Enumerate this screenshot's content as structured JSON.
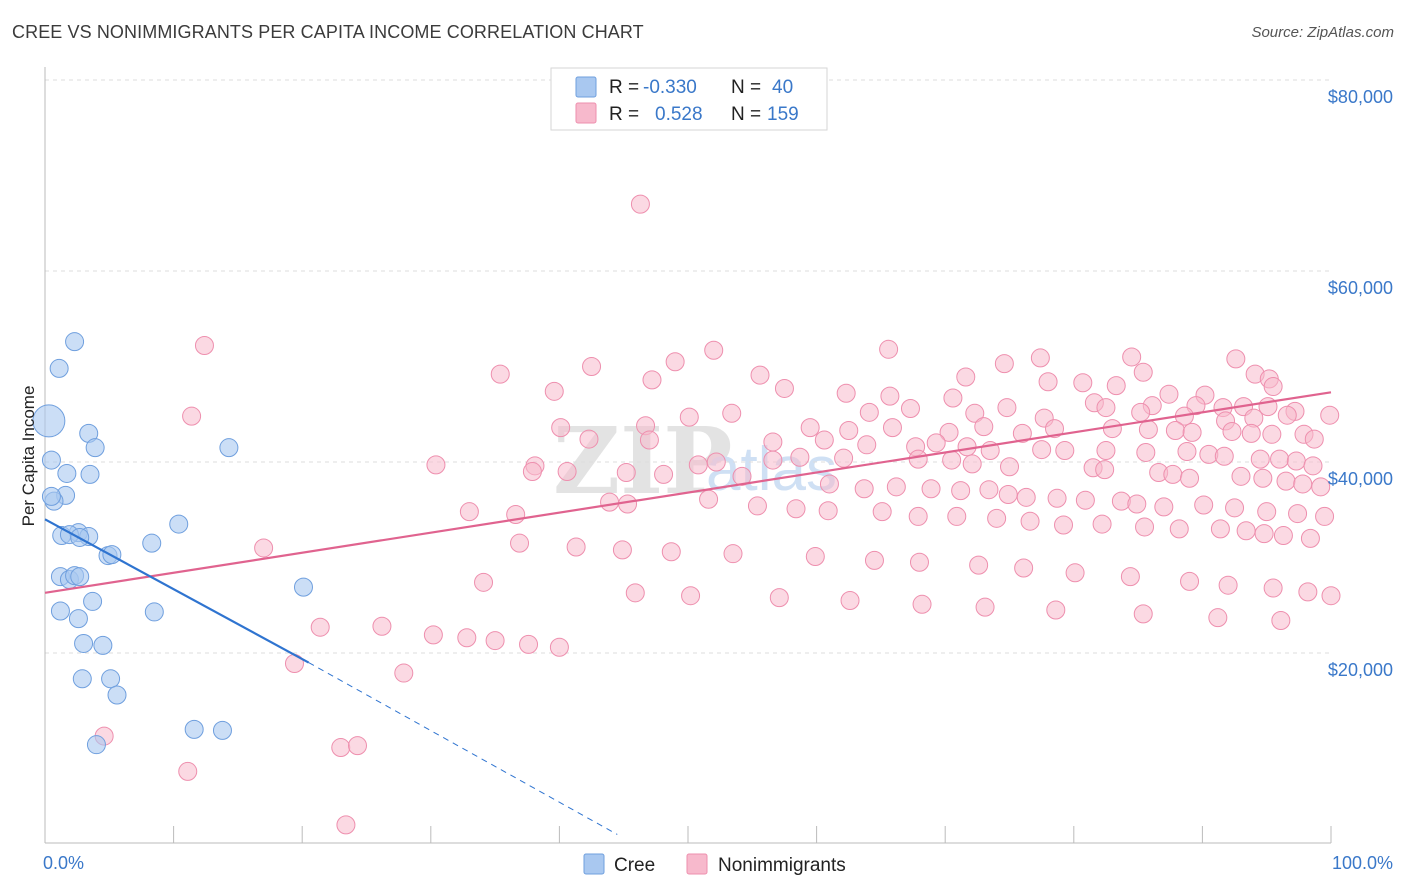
{
  "title": "CREE VS NONIMMIGRANTS PER CAPITA INCOME CORRELATION CHART",
  "source": "Source: ZipAtlas.com",
  "watermark": {
    "zip": "ZIP",
    "atlas": "atlas"
  },
  "colors": {
    "cree_fill": "#a9c8f0",
    "cree_stroke": "#6f9fde",
    "cree_line": "#2f74d0",
    "non_fill": "#f7b9cc",
    "non_stroke": "#ee8fae",
    "non_line": "#e0638f",
    "label_blue": "#3a78c9",
    "grid": "#dddddd"
  },
  "legend": {
    "rows": [
      {
        "r_label": "R =",
        "r_value": "-0.330",
        "n_label": "N =",
        "n_value": "40",
        "series": "cree"
      },
      {
        "r_label": "R =",
        "r_value": "0.528",
        "n_label": "N =",
        "n_value": "159",
        "series": "non"
      }
    ]
  },
  "bottom_legend": {
    "cree": "Cree",
    "non": "Nonimmigrants"
  },
  "chart_data": {
    "type": "scatter",
    "title": "CREE VS NONIMMIGRANTS PER CAPITA INCOME CORRELATION CHART",
    "xlabel": "",
    "ylabel": "Per Capita Income",
    "xlim": [
      0,
      100
    ],
    "ylim": [
      0,
      82000
    ],
    "x_tick_labels": [
      "0.0%",
      "100.0%"
    ],
    "y_ticks": [
      20000,
      40000,
      60000,
      80000
    ],
    "y_tick_labels": [
      "$20,000",
      "$40,000",
      "$60,000",
      "$80,000"
    ],
    "grid": true,
    "legend_position": "top-center",
    "series": [
      {
        "name": "Cree",
        "r": -0.33,
        "n": 40,
        "trend": {
          "x0": 0,
          "y0": 34000,
          "x1": 20.5,
          "y1": 19000,
          "dash_to_x": 44.5,
          "dash_to_y": 1000
        },
        "points": [
          [
            0.3,
            44300,
            16
          ],
          [
            2.3,
            52600,
            9
          ],
          [
            1.1,
            49800,
            9
          ],
          [
            3.4,
            43000,
            9
          ],
          [
            3.9,
            41500,
            9
          ],
          [
            0.5,
            40200,
            9
          ],
          [
            1.7,
            38800,
            9
          ],
          [
            3.5,
            38700,
            9
          ],
          [
            1.6,
            36500,
            9
          ],
          [
            0.7,
            35900,
            9
          ],
          [
            0.5,
            36400,
            9
          ],
          [
            2.6,
            32600,
            9
          ],
          [
            1.3,
            32300,
            9
          ],
          [
            1.9,
            32400,
            9
          ],
          [
            3.4,
            32200,
            9
          ],
          [
            2.7,
            32100,
            9
          ],
          [
            10.4,
            33500,
            9
          ],
          [
            8.3,
            31500,
            9
          ],
          [
            14.3,
            41500,
            9
          ],
          [
            4.9,
            30200,
            9
          ],
          [
            5.2,
            30300,
            9
          ],
          [
            1.2,
            28000,
            9
          ],
          [
            1.9,
            27700,
            9
          ],
          [
            2.3,
            28100,
            9
          ],
          [
            2.7,
            28000,
            9
          ],
          [
            3.7,
            25400,
            9
          ],
          [
            1.2,
            24400,
            9
          ],
          [
            2.6,
            23600,
            9
          ],
          [
            8.5,
            24300,
            9
          ],
          [
            20.1,
            26900,
            9
          ],
          [
            3.0,
            21000,
            9
          ],
          [
            4.5,
            20800,
            9
          ],
          [
            2.9,
            17300,
            9
          ],
          [
            5.1,
            17300,
            9
          ],
          [
            5.6,
            15600,
            9
          ],
          [
            11.6,
            12000,
            9
          ],
          [
            13.8,
            11900,
            9
          ],
          [
            4.0,
            10400,
            9
          ]
        ]
      },
      {
        "name": "Nonimmigrants",
        "r": 0.528,
        "n": 159,
        "trend": {
          "x0": 0,
          "y0": 26300,
          "x1": 100,
          "y1": 47300
        },
        "points": [
          [
            46.3,
            67000,
            9
          ],
          [
            12.4,
            52200,
            9
          ],
          [
            52.0,
            51700,
            9
          ],
          [
            65.6,
            51800,
            9
          ],
          [
            49.0,
            50500,
            9
          ],
          [
            42.5,
            50000,
            9
          ],
          [
            74.6,
            50300,
            9
          ],
          [
            77.4,
            50900,
            9
          ],
          [
            84.5,
            51000,
            9
          ],
          [
            85.4,
            49400,
            9
          ],
          [
            92.6,
            50800,
            9
          ],
          [
            94.1,
            49200,
            9
          ],
          [
            95.2,
            48700,
            9
          ],
          [
            35.4,
            49200,
            9
          ],
          [
            47.2,
            48600,
            9
          ],
          [
            55.6,
            49100,
            9
          ],
          [
            71.6,
            48900,
            9
          ],
          [
            78.0,
            48400,
            9
          ],
          [
            80.7,
            48300,
            9
          ],
          [
            83.3,
            48000,
            9
          ],
          [
            95.5,
            47900,
            9
          ],
          [
            57.5,
            47700,
            9
          ],
          [
            39.6,
            47400,
            9
          ],
          [
            62.3,
            47200,
            9
          ],
          [
            65.7,
            46900,
            9
          ],
          [
            70.6,
            46700,
            9
          ],
          [
            87.4,
            47100,
            9
          ],
          [
            90.2,
            47000,
            9
          ],
          [
            81.6,
            46200,
            9
          ],
          [
            86.1,
            45900,
            9
          ],
          [
            89.5,
            45900,
            9
          ],
          [
            91.6,
            45700,
            9
          ],
          [
            93.2,
            45800,
            9
          ],
          [
            95.1,
            45800,
            9
          ],
          [
            97.2,
            45300,
            9
          ],
          [
            11.4,
            44800,
            9
          ],
          [
            50.1,
            44700,
            9
          ],
          [
            53.4,
            45100,
            9
          ],
          [
            64.1,
            45200,
            9
          ],
          [
            67.3,
            45600,
            9
          ],
          [
            72.3,
            45100,
            9
          ],
          [
            74.8,
            45700,
            9
          ],
          [
            77.7,
            44600,
            9
          ],
          [
            82.5,
            45700,
            9
          ],
          [
            85.2,
            45200,
            9
          ],
          [
            88.6,
            44800,
            9
          ],
          [
            91.8,
            44300,
            9
          ],
          [
            94.0,
            44600,
            9
          ],
          [
            96.6,
            44900,
            9
          ],
          [
            99.9,
            44900,
            9
          ],
          [
            40.1,
            43600,
            9
          ],
          [
            46.7,
            43800,
            9
          ],
          [
            59.5,
            43600,
            9
          ],
          [
            62.5,
            43300,
            9
          ],
          [
            65.9,
            43600,
            9
          ],
          [
            70.3,
            43100,
            9
          ],
          [
            73.0,
            43700,
            9
          ],
          [
            76.0,
            43000,
            9
          ],
          [
            78.5,
            43500,
            9
          ],
          [
            83.0,
            43500,
            9
          ],
          [
            85.8,
            43400,
            9
          ],
          [
            87.9,
            43300,
            9
          ],
          [
            89.2,
            43100,
            9
          ],
          [
            92.3,
            43200,
            9
          ],
          [
            93.8,
            43000,
            9
          ],
          [
            95.4,
            42900,
            9
          ],
          [
            97.9,
            42900,
            9
          ],
          [
            98.7,
            42400,
            9
          ],
          [
            42.3,
            42400,
            9
          ],
          [
            47.0,
            42300,
            9
          ],
          [
            56.6,
            42100,
            9
          ],
          [
            60.6,
            42300,
            9
          ],
          [
            63.9,
            41800,
            9
          ],
          [
            67.7,
            41600,
            9
          ],
          [
            69.3,
            42000,
            9
          ],
          [
            71.7,
            41600,
            9
          ],
          [
            73.5,
            41200,
            9
          ],
          [
            77.5,
            41300,
            9
          ],
          [
            79.3,
            41200,
            9
          ],
          [
            82.5,
            41200,
            9
          ],
          [
            85.6,
            41000,
            9
          ],
          [
            88.8,
            41100,
            9
          ],
          [
            90.5,
            40800,
            9
          ],
          [
            91.7,
            40600,
            9
          ],
          [
            94.5,
            40300,
            9
          ],
          [
            96.0,
            40300,
            9
          ],
          [
            97.3,
            40100,
            9
          ],
          [
            98.6,
            39600,
            9
          ],
          [
            30.4,
            39700,
            9
          ],
          [
            38.1,
            39600,
            9
          ],
          [
            50.8,
            39700,
            9
          ],
          [
            52.2,
            40000,
            9
          ],
          [
            56.6,
            40200,
            9
          ],
          [
            58.7,
            40500,
            9
          ],
          [
            62.1,
            40400,
            9
          ],
          [
            67.9,
            40300,
            9
          ],
          [
            70.5,
            40200,
            9
          ],
          [
            72.1,
            39800,
            9
          ],
          [
            75.0,
            39500,
            9
          ],
          [
            81.5,
            39400,
            9
          ],
          [
            82.4,
            39200,
            9
          ],
          [
            86.6,
            38900,
            9
          ],
          [
            87.7,
            38700,
            9
          ],
          [
            89.0,
            38300,
            9
          ],
          [
            93.0,
            38500,
            9
          ],
          [
            94.7,
            38300,
            9
          ],
          [
            96.5,
            38000,
            9
          ],
          [
            97.8,
            37700,
            9
          ],
          [
            99.2,
            37400,
            9
          ],
          [
            37.9,
            39000,
            9
          ],
          [
            40.6,
            39000,
            9
          ],
          [
            45.2,
            38900,
            9
          ],
          [
            48.1,
            38700,
            9
          ],
          [
            54.2,
            38500,
            9
          ],
          [
            61.0,
            37700,
            9
          ],
          [
            63.7,
            37200,
            9
          ],
          [
            66.2,
            37400,
            9
          ],
          [
            68.9,
            37200,
            9
          ],
          [
            71.2,
            37000,
            9
          ],
          [
            73.4,
            37100,
            9
          ],
          [
            74.9,
            36600,
            9
          ],
          [
            76.3,
            36300,
            9
          ],
          [
            78.7,
            36200,
            9
          ],
          [
            80.9,
            36000,
            9
          ],
          [
            83.7,
            35900,
            9
          ],
          [
            84.9,
            35600,
            9
          ],
          [
            87.0,
            35300,
            9
          ],
          [
            90.1,
            35500,
            9
          ],
          [
            92.5,
            35200,
            9
          ],
          [
            95.0,
            34800,
            9
          ],
          [
            97.4,
            34600,
            9
          ],
          [
            99.5,
            34300,
            9
          ],
          [
            33.0,
            34800,
            9
          ],
          [
            36.6,
            34500,
            9
          ],
          [
            43.9,
            35800,
            9
          ],
          [
            45.3,
            35600,
            9
          ],
          [
            51.6,
            36100,
            9
          ],
          [
            55.4,
            35400,
            9
          ],
          [
            58.4,
            35100,
            9
          ],
          [
            60.9,
            34900,
            9
          ],
          [
            65.1,
            34800,
            9
          ],
          [
            67.9,
            34300,
            9
          ],
          [
            70.9,
            34300,
            9
          ],
          [
            74.0,
            34100,
            9
          ],
          [
            76.6,
            33800,
            9
          ],
          [
            79.2,
            33400,
            9
          ],
          [
            82.2,
            33500,
            9
          ],
          [
            85.5,
            33200,
            9
          ],
          [
            88.2,
            33000,
            9
          ],
          [
            91.4,
            33000,
            9
          ],
          [
            93.4,
            32800,
            9
          ],
          [
            94.8,
            32500,
            9
          ],
          [
            96.3,
            32300,
            9
          ],
          [
            98.4,
            32000,
            9
          ],
          [
            36.9,
            31500,
            9
          ],
          [
            41.3,
            31100,
            9
          ],
          [
            44.9,
            30800,
            9
          ],
          [
            48.7,
            30600,
            9
          ],
          [
            53.5,
            30400,
            9
          ],
          [
            59.9,
            30100,
            9
          ],
          [
            64.5,
            29700,
            9
          ],
          [
            68.0,
            29500,
            9
          ],
          [
            72.6,
            29200,
            9
          ],
          [
            76.1,
            28900,
            9
          ],
          [
            80.1,
            28400,
            9
          ],
          [
            84.4,
            28000,
            9
          ],
          [
            89.0,
            27500,
            9
          ],
          [
            92.0,
            27100,
            9
          ],
          [
            95.5,
            26800,
            9
          ],
          [
            98.2,
            26400,
            9
          ],
          [
            100.0,
            26000,
            9
          ],
          [
            34.1,
            27400,
            9
          ],
          [
            45.9,
            26300,
            9
          ],
          [
            50.2,
            26000,
            9
          ],
          [
            57.1,
            25800,
            9
          ],
          [
            62.6,
            25500,
            9
          ],
          [
            68.2,
            25100,
            9
          ],
          [
            73.1,
            24800,
            9
          ],
          [
            78.6,
            24500,
            9
          ],
          [
            85.4,
            24100,
            9
          ],
          [
            91.2,
            23700,
            9
          ],
          [
            96.1,
            23400,
            9
          ],
          [
            17.0,
            31000,
            9
          ],
          [
            21.4,
            22700,
            9
          ],
          [
            26.2,
            22800,
            9
          ],
          [
            30.2,
            21900,
            9
          ],
          [
            32.8,
            21600,
            9
          ],
          [
            35.0,
            21300,
            9
          ],
          [
            37.6,
            20900,
            9
          ],
          [
            40.0,
            20600,
            9
          ],
          [
            19.4,
            18900,
            9
          ],
          [
            27.9,
            17900,
            9
          ],
          [
            23.0,
            10100,
            9
          ],
          [
            24.3,
            10300,
            9
          ],
          [
            11.1,
            7600,
            9
          ],
          [
            4.6,
            11300,
            9
          ],
          [
            23.4,
            2000,
            9
          ]
        ]
      }
    ]
  }
}
